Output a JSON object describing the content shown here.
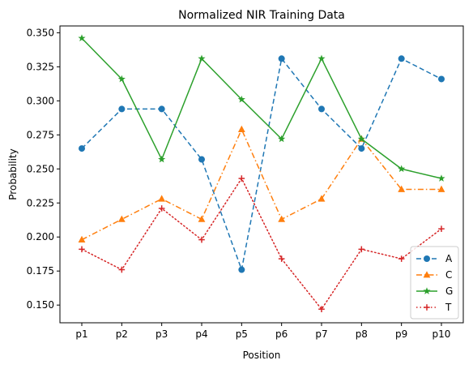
{
  "chart_data": {
    "type": "line",
    "title": "Normalized NIR Training Data",
    "xlabel": "Position",
    "ylabel": "Probability",
    "categories": [
      "p1",
      "p2",
      "p3",
      "p4",
      "p5",
      "p6",
      "p7",
      "p8",
      "p9",
      "p10"
    ],
    "ylim": [
      0.137,
      0.355
    ],
    "yticks": [
      "0.150",
      "0.175",
      "0.200",
      "0.225",
      "0.250",
      "0.275",
      "0.300",
      "0.325",
      "0.350"
    ],
    "grid": false,
    "legend_position": "lower right",
    "series": [
      {
        "name": "A",
        "color": "#1f77b4",
        "dash": "dashed",
        "marker": "circle",
        "values": [
          0.265,
          0.294,
          0.294,
          0.257,
          0.176,
          0.331,
          0.294,
          0.265,
          0.331,
          0.316
        ]
      },
      {
        "name": "C",
        "color": "#ff7f0e",
        "dash": "dashdot",
        "marker": "triangle",
        "values": [
          0.198,
          0.213,
          0.228,
          0.213,
          0.279,
          0.213,
          0.228,
          0.272,
          0.235,
          0.235
        ]
      },
      {
        "name": "G",
        "color": "#2ca02c",
        "dash": "solid",
        "marker": "star",
        "values": [
          0.346,
          0.316,
          0.257,
          0.331,
          0.301,
          0.272,
          0.331,
          0.272,
          0.25,
          0.243
        ]
      },
      {
        "name": "T",
        "color": "#d62728",
        "dash": "dotted",
        "marker": "plus",
        "values": [
          0.191,
          0.176,
          0.221,
          0.198,
          0.243,
          0.184,
          0.147,
          0.191,
          0.184,
          0.206
        ]
      }
    ]
  }
}
